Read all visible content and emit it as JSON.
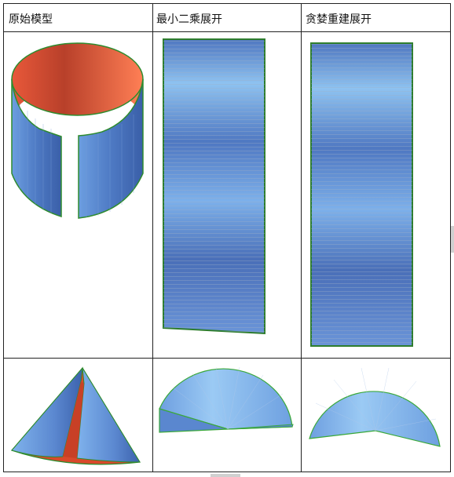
{
  "table": {
    "headers": [
      "原始模型",
      "最小二乘展开",
      "贪婪重建展开"
    ]
  },
  "rows": [
    {
      "name": "cylinder",
      "cells": [
        "cylinder-model",
        "cylinder-lsq-unfold",
        "cylinder-greedy-unfold"
      ]
    },
    {
      "name": "cone",
      "cells": [
        "cone-model",
        "cone-lsq-unfold",
        "cone-greedy-unfold"
      ]
    }
  ],
  "colors": {
    "grid_line": "#222222",
    "mesh_blue_light": "#8ec2f0",
    "mesh_blue_dark": "#3d5fa8",
    "inner_red": "#e0502f",
    "outline_green": "#2e8b2e"
  }
}
